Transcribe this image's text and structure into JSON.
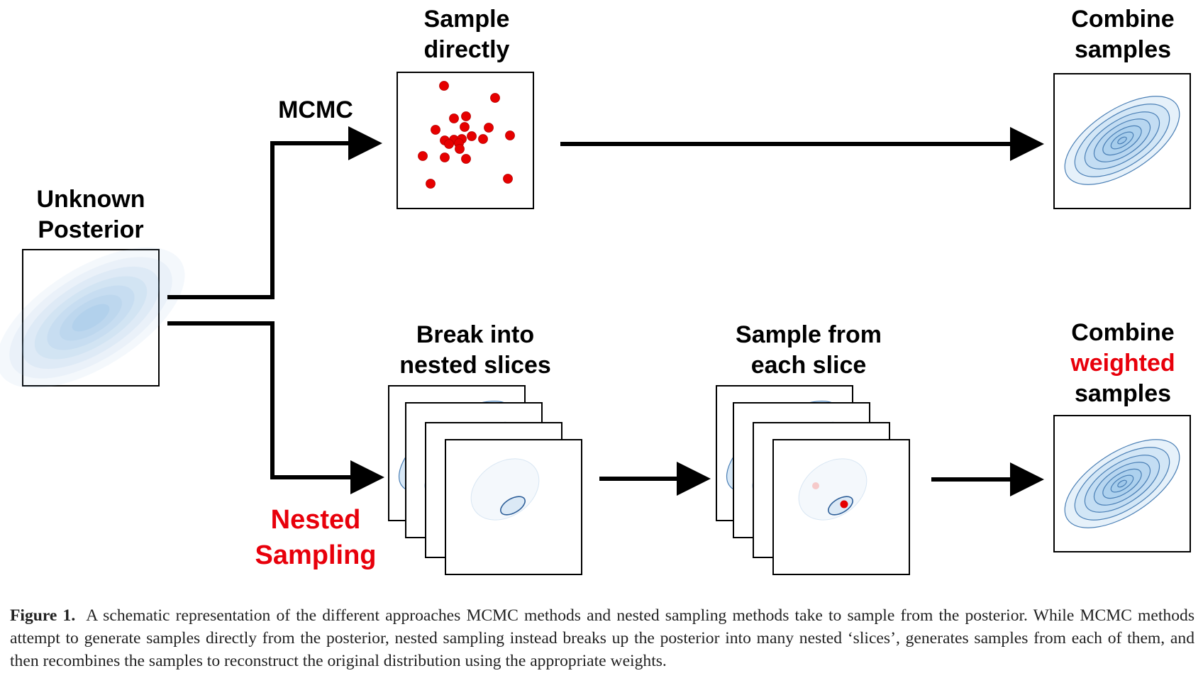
{
  "labels": {
    "unknown_posterior": [
      "Unknown",
      "Posterior"
    ],
    "mcmc": "MCMC",
    "nested_sampling": [
      "Nested",
      "Sampling"
    ],
    "sample_directly": [
      "Sample",
      "directly"
    ],
    "combine_samples": [
      "Combine",
      "samples"
    ],
    "break_into_slices": [
      "Break into",
      "nested slices"
    ],
    "sample_from_slice": [
      "Sample from",
      "each slice"
    ],
    "combine_weighted": [
      "Combine",
      "weighted",
      "samples"
    ]
  },
  "caption": {
    "prefix": "Figure 1.",
    "text": "A schematic representation of the different approaches MCMC methods and nested sampling methods take to sample from the posterior. While MCMC methods attempt to generate samples directly from the posterior, nested sampling instead breaks up the posterior into many nested ‘slices’, generates samples from each of them, and then recombines the samples to reconstruct the original distribution using the appropriate weights."
  },
  "colors": {
    "accent_red": "#e8000b",
    "point_red": "#e60000",
    "contour_blue": "#4a7fb5",
    "fill_blue": "#8fbde6"
  }
}
